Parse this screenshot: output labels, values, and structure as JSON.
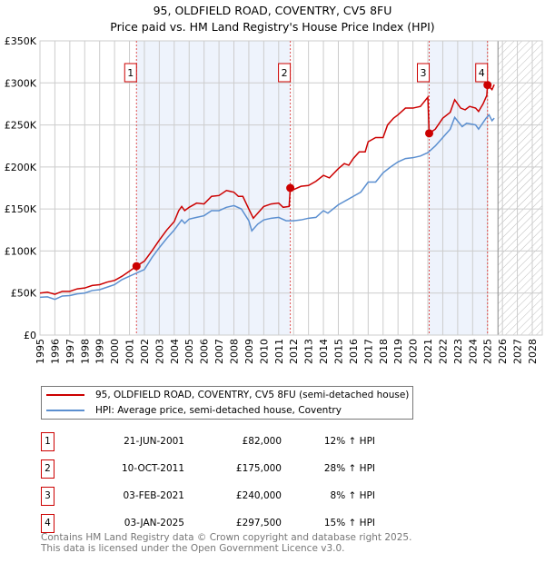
{
  "title": "95, OLDFIELD ROAD, COVENTRY, CV5 8FU",
  "subtitle": "Price paid vs. HM Land Registry's House Price Index (HPI)",
  "chart_data": {
    "type": "line",
    "title": "95, OLDFIELD ROAD, COVENTRY, CV5 8FU",
    "subtitle": "Price paid vs. HM Land Registry's House Price Index (HPI)",
    "xlim": [
      1995,
      2028
    ],
    "ylim": [
      0,
      350000
    ],
    "x_ticks": [
      "1995",
      "1996",
      "1997",
      "1998",
      "1999",
      "2000",
      "2001",
      "2002",
      "2003",
      "2004",
      "2005",
      "2006",
      "2007",
      "2008",
      "2009",
      "2010",
      "2011",
      "2012",
      "2013",
      "2014",
      "2015",
      "2016",
      "2017",
      "2018",
      "2019",
      "2020",
      "2021",
      "2022",
      "2023",
      "2024",
      "2025",
      "2026",
      "2027",
      "2028"
    ],
    "y_ticks": [
      {
        "v": 0,
        "label": "£0"
      },
      {
        "v": 50000,
        "label": "£50K"
      },
      {
        "v": 100000,
        "label": "£100K"
      },
      {
        "v": 150000,
        "label": "£150K"
      },
      {
        "v": 200000,
        "label": "£200K"
      },
      {
        "v": 250000,
        "label": "£250K"
      },
      {
        "v": 300000,
        "label": "£300K"
      },
      {
        "v": 350000,
        "label": "£350K"
      }
    ],
    "grid": true,
    "shaded_periods": [
      [
        2001.47,
        2011.78
      ],
      [
        2021.09,
        2025.0
      ]
    ],
    "forecast_hatch_start": 2025.7,
    "series": [
      {
        "name": "95, OLDFIELD ROAD, COVENTRY, CV5 8FU (semi-detached house)",
        "color": "#cc0000",
        "points": [
          [
            1995,
            50000
          ],
          [
            1995.5,
            51000
          ],
          [
            1996,
            48500
          ],
          [
            1996.5,
            52000
          ],
          [
            1997,
            52000
          ],
          [
            1997.5,
            55000
          ],
          [
            1998,
            56000
          ],
          [
            1998.5,
            59000
          ],
          [
            1999,
            60000
          ],
          [
            1999.5,
            63000
          ],
          [
            2000,
            65000
          ],
          [
            2000.5,
            70000
          ],
          [
            2001,
            76000
          ],
          [
            2001.47,
            82000
          ],
          [
            2002,
            88000
          ],
          [
            2002.5,
            100000
          ],
          [
            2003,
            113000
          ],
          [
            2003.5,
            125000
          ],
          [
            2004,
            135000
          ],
          [
            2004.3,
            148000
          ],
          [
            2004.5,
            153000
          ],
          [
            2004.7,
            148000
          ],
          [
            2005,
            152000
          ],
          [
            2005.5,
            157000
          ],
          [
            2006,
            156000
          ],
          [
            2006.5,
            165000
          ],
          [
            2007,
            166000
          ],
          [
            2007.5,
            172000
          ],
          [
            2008,
            170000
          ],
          [
            2008.3,
            165000
          ],
          [
            2008.6,
            165000
          ],
          [
            2009,
            150000
          ],
          [
            2009.3,
            139000
          ],
          [
            2009.7,
            147000
          ],
          [
            2010,
            153000
          ],
          [
            2010.5,
            156000
          ],
          [
            2011,
            157000
          ],
          [
            2011.3,
            152000
          ],
          [
            2011.7,
            153000
          ],
          [
            2011.78,
            175000
          ],
          [
            2012,
            173000
          ],
          [
            2012.5,
            177000
          ],
          [
            2013,
            178000
          ],
          [
            2013.5,
            183000
          ],
          [
            2014,
            190000
          ],
          [
            2014.4,
            187000
          ],
          [
            2015,
            198000
          ],
          [
            2015.4,
            204000
          ],
          [
            2015.7,
            202000
          ],
          [
            2016,
            210000
          ],
          [
            2016.4,
            218000
          ],
          [
            2016.8,
            218000
          ],
          [
            2017,
            230000
          ],
          [
            2017.5,
            235000
          ],
          [
            2018,
            235000
          ],
          [
            2018.3,
            250000
          ],
          [
            2018.7,
            258000
          ],
          [
            2019,
            262000
          ],
          [
            2019.5,
            270000
          ],
          [
            2020,
            270000
          ],
          [
            2020.5,
            272000
          ],
          [
            2021,
            283000
          ],
          [
            2021.09,
            240000
          ],
          [
            2021.5,
            245000
          ],
          [
            2022,
            258000
          ],
          [
            2022.5,
            265000
          ],
          [
            2022.8,
            280000
          ],
          [
            2023.2,
            270000
          ],
          [
            2023.5,
            268000
          ],
          [
            2023.8,
            272000
          ],
          [
            2024.2,
            270000
          ],
          [
            2024.4,
            266000
          ],
          [
            2024.7,
            275000
          ],
          [
            2024.95,
            285000
          ],
          [
            2025.0,
            297500
          ],
          [
            2025.3,
            292000
          ],
          [
            2025.45,
            298000
          ]
        ]
      },
      {
        "name": "HPI: Average price, semi-detached house, Coventry",
        "color": "#5b8fd0",
        "points": [
          [
            1995,
            45000
          ],
          [
            1995.5,
            45500
          ],
          [
            1996,
            42500
          ],
          [
            1996.5,
            46500
          ],
          [
            1997,
            47000
          ],
          [
            1997.5,
            49000
          ],
          [
            1998,
            50000
          ],
          [
            1998.5,
            53000
          ],
          [
            1999,
            54000
          ],
          [
            1999.5,
            57000
          ],
          [
            2000,
            60000
          ],
          [
            2000.5,
            66000
          ],
          [
            2001,
            70000
          ],
          [
            2001.5,
            74000
          ],
          [
            2002,
            78000
          ],
          [
            2002.5,
            92000
          ],
          [
            2003,
            104000
          ],
          [
            2003.5,
            115000
          ],
          [
            2004,
            125000
          ],
          [
            2004.5,
            137000
          ],
          [
            2004.7,
            133000
          ],
          [
            2005,
            138000
          ],
          [
            2005.5,
            140000
          ],
          [
            2006,
            142000
          ],
          [
            2006.5,
            148000
          ],
          [
            2007,
            148000
          ],
          [
            2007.5,
            152000
          ],
          [
            2008,
            154000
          ],
          [
            2008.5,
            150000
          ],
          [
            2009,
            136000
          ],
          [
            2009.2,
            124000
          ],
          [
            2009.6,
            132000
          ],
          [
            2010,
            137000
          ],
          [
            2010.5,
            139000
          ],
          [
            2011,
            140000
          ],
          [
            2011.5,
            136000
          ],
          [
            2012,
            136000
          ],
          [
            2012.5,
            137000
          ],
          [
            2013,
            139000
          ],
          [
            2013.5,
            140000
          ],
          [
            2014,
            148000
          ],
          [
            2014.3,
            145000
          ],
          [
            2015,
            155000
          ],
          [
            2015.3,
            158000
          ],
          [
            2016,
            165000
          ],
          [
            2016.5,
            170000
          ],
          [
            2017,
            182000
          ],
          [
            2017.5,
            182000
          ],
          [
            2018,
            193000
          ],
          [
            2018.5,
            200000
          ],
          [
            2019,
            206000
          ],
          [
            2019.5,
            210000
          ],
          [
            2020,
            211000
          ],
          [
            2020.5,
            213000
          ],
          [
            2021,
            217000
          ],
          [
            2021.5,
            225000
          ],
          [
            2022,
            235000
          ],
          [
            2022.5,
            245000
          ],
          [
            2022.8,
            259000
          ],
          [
            2023.3,
            248000
          ],
          [
            2023.6,
            252000
          ],
          [
            2024.2,
            250000
          ],
          [
            2024.4,
            245000
          ],
          [
            2024.9,
            258000
          ],
          [
            2025.1,
            262000
          ],
          [
            2025.3,
            255000
          ],
          [
            2025.45,
            258000
          ]
        ]
      }
    ],
    "annotations": [
      {
        "label": "1",
        "x": 2001.47,
        "y": 82000
      },
      {
        "label": "2",
        "x": 2011.78,
        "y": 175000
      },
      {
        "label": "3",
        "x": 2021.09,
        "y": 240000
      },
      {
        "label": "4",
        "x": 2025.0,
        "y": 297500
      }
    ],
    "legend_placement": "below"
  },
  "legend": [
    {
      "label": "95, OLDFIELD ROAD, COVENTRY, CV5 8FU (semi-detached house)",
      "color": "#cc0000"
    },
    {
      "label": "HPI: Average price, semi-detached house, Coventry",
      "color": "#5b8fd0"
    }
  ],
  "transactions": [
    {
      "num": "1",
      "date": "21-JUN-2001",
      "price": "£82,000",
      "hpi": "12% ↑ HPI"
    },
    {
      "num": "2",
      "date": "10-OCT-2011",
      "price": "£175,000",
      "hpi": "28% ↑ HPI"
    },
    {
      "num": "3",
      "date": "03-FEB-2021",
      "price": "£240,000",
      "hpi": "8% ↑ HPI"
    },
    {
      "num": "4",
      "date": "03-JAN-2025",
      "price": "£297,500",
      "hpi": "15% ↑ HPI"
    }
  ],
  "footer": [
    "Contains HM Land Registry data © Crown copyright and database right 2025.",
    "This data is licensed under the Open Government Licence v3.0."
  ]
}
